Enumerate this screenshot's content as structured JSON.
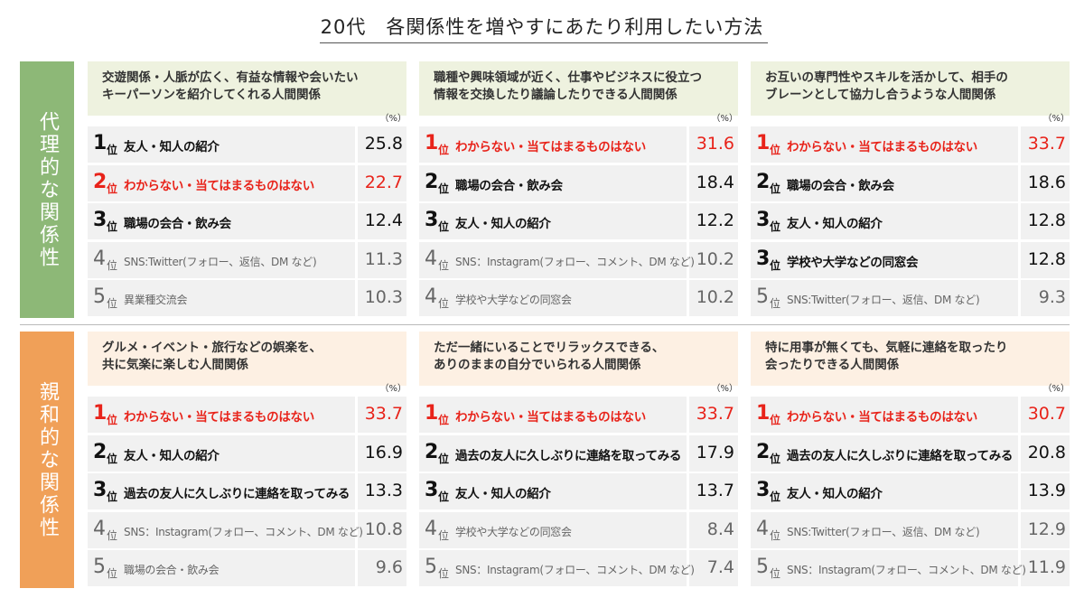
{
  "title": "20代　各関係性を増やすにあたり利用したい方法",
  "unit": "（%）",
  "rank_suffix": "位",
  "groups": [
    {
      "label": "代理的な関係性",
      "color": "#8db877",
      "head_color": "#eef2df",
      "panels": [
        {
          "header": [
            "交遊関係・人脈が広く、有益な情報や会いたい",
            "キーパーソンを紹介してくれる人間関係"
          ],
          "rows": [
            {
              "rank": 1,
              "label": "友人・知人の紹介",
              "value": 25.8
            },
            {
              "rank": 2,
              "label": "わからない・当てはまるものはない",
              "value": 22.7,
              "highlight": true
            },
            {
              "rank": 3,
              "label": "職場の会合・飲み会",
              "value": 12.4
            },
            {
              "rank": 4,
              "label": "SNS:Twitter(フォロー、返信、DM など)",
              "value": 11.3
            },
            {
              "rank": 5,
              "label": "異業種交流会",
              "value": 10.3
            }
          ]
        },
        {
          "header": [
            "職種や興味領域が近く、仕事やビジネスに役立つ",
            "情報を交換したり議論したりできる人間関係"
          ],
          "rows": [
            {
              "rank": 1,
              "label": "わからない・当てはまるものはない",
              "value": 31.6,
              "highlight": true
            },
            {
              "rank": 2,
              "label": "職場の会合・飲み会",
              "value": 18.4
            },
            {
              "rank": 3,
              "label": "友人・知人の紹介",
              "value": 12.2
            },
            {
              "rank": 4,
              "label": "SNS：Instagram(フォロー、コメント、DM など)",
              "value": 10.2
            },
            {
              "rank": 4,
              "label": "学校や大学などの同窓会",
              "value": 10.2
            }
          ]
        },
        {
          "header": [
            "お互いの専門性やスキルを活かして、相手の",
            "ブレーンとして協力し合うような人間関係"
          ],
          "rows": [
            {
              "rank": 1,
              "label": "わからない・当てはまるものはない",
              "value": 33.7,
              "highlight": true
            },
            {
              "rank": 2,
              "label": "職場の会合・飲み会",
              "value": 18.6
            },
            {
              "rank": 3,
              "label": "友人・知人の紹介",
              "value": 12.8
            },
            {
              "rank": 3,
              "label": "学校や大学などの同窓会",
              "value": 12.8
            },
            {
              "rank": 5,
              "label": "SNS:Twitter(フォロー、返信、DM など)",
              "value": 9.3
            }
          ]
        }
      ]
    },
    {
      "label": "親和的な関係性",
      "color": "#f0a058",
      "head_color": "#fdf0e3",
      "panels": [
        {
          "header": [
            "グルメ・イベント・旅行などの娯楽を、",
            "共に気楽に楽しむ人間関係"
          ],
          "rows": [
            {
              "rank": 1,
              "label": "わからない・当てはまるものはない",
              "value": 33.7,
              "highlight": true
            },
            {
              "rank": 2,
              "label": "友人・知人の紹介",
              "value": 16.9
            },
            {
              "rank": 3,
              "label": "過去の友人に久しぶりに連絡を取ってみる",
              "value": 13.3
            },
            {
              "rank": 4,
              "label": "SNS：Instagram(フォロー、コメント、DM など)",
              "value": 10.8
            },
            {
              "rank": 5,
              "label": "職場の会合・飲み会",
              "value": 9.6
            }
          ]
        },
        {
          "header": [
            "ただ一緒にいることでリラックスできる、",
            "ありのままの自分でいられる人間関係"
          ],
          "rows": [
            {
              "rank": 1,
              "label": "わからない・当てはまるものはない",
              "value": 33.7,
              "highlight": true
            },
            {
              "rank": 2,
              "label": "過去の友人に久しぶりに連絡を取ってみる",
              "value": 17.9
            },
            {
              "rank": 3,
              "label": "友人・知人の紹介",
              "value": 13.7
            },
            {
              "rank": 4,
              "label": "学校や大学などの同窓会",
              "value": 8.4
            },
            {
              "rank": 5,
              "label": "SNS：Instagram(フォロー、コメント、DM など)",
              "value": 7.4
            }
          ]
        },
        {
          "header": [
            "特に用事が無くても、気軽に連絡を取ったり",
            "会ったりできる人間関係"
          ],
          "rows": [
            {
              "rank": 1,
              "label": "わからない・当てはまるものはない",
              "value": 30.7,
              "highlight": true
            },
            {
              "rank": 2,
              "label": "過去の友人に久しぶりに連絡を取ってみる",
              "value": 20.8
            },
            {
              "rank": 3,
              "label": "友人・知人の紹介",
              "value": 13.9
            },
            {
              "rank": 4,
              "label": "SNS:Twitter(フォロー、返信、DM など)",
              "value": 12.9
            },
            {
              "rank": 5,
              "label": "SNS：Instagram(フォロー、コメント、DM など)",
              "value": 11.9
            }
          ]
        }
      ]
    }
  ]
}
